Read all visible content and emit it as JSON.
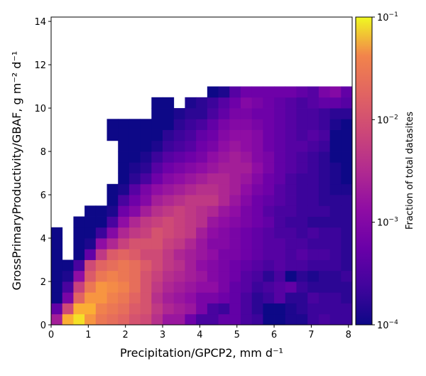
{
  "chart_data": {
    "type": "heatmap",
    "title": "",
    "xlabel": "Precipitation/GPCP2,  mm d⁻¹",
    "ylabel": "GrossPrimaryProductivity/GBAF,  g m⁻² d⁻¹",
    "xlim": [
      0,
      8.1
    ],
    "ylim": [
      0,
      14.2
    ],
    "x_ticks": [
      0,
      1,
      2,
      3,
      4,
      5,
      6,
      7,
      8
    ],
    "y_ticks": [
      0,
      2,
      4,
      6,
      8,
      10,
      12,
      14
    ],
    "bin_width_x": 0.3,
    "bin_width_y": 0.5,
    "colormap": "plasma",
    "colorbar": {
      "label": "Fraction of total datasites",
      "scale": "log",
      "min": 0.0001,
      "max": 0.1,
      "ticks": [
        {
          "value": 0.0001,
          "base": "10",
          "exp": "−4"
        },
        {
          "value": 0.001,
          "base": "10",
          "exp": "−3"
        },
        {
          "value": 0.01,
          "base": "10",
          "exp": "−2"
        },
        {
          "value": 0.1,
          "base": "10",
          "exp": "−1"
        }
      ]
    },
    "log10_fraction_grid_rows_from_y0": [
      [
        -2.8,
        -1.3,
        -1.1,
        -1.5,
        -1.8,
        -1.9,
        -2.0,
        -2.2,
        -2.3,
        -2.6,
        -2.9,
        -2.9,
        -3.3,
        -3.6,
        -3.6,
        -3.4,
        -3.4,
        -3.6,
        -3.7,
        -4.0,
        -4.0,
        -3.9,
        -3.9,
        -3.7,
        -3.6,
        -3.7,
        -3.7
      ],
      [
        -3.4,
        -2.3,
        -1.3,
        -1.3,
        -1.7,
        -1.8,
        -1.9,
        -2.1,
        -2.2,
        -2.5,
        -2.7,
        -2.8,
        -2.9,
        -3.2,
        -3.6,
        -3.7,
        -3.4,
        -3.6,
        -3.8,
        -4.0,
        -4.0,
        -3.9,
        -3.8,
        -3.7,
        -3.7,
        -3.7,
        -3.7
      ],
      [
        -4.0,
        -3.2,
        -2.0,
        -1.5,
        -1.5,
        -1.7,
        -1.8,
        -2.0,
        -2.2,
        -2.6,
        -2.8,
        -2.9,
        -3.0,
        -3.2,
        -3.2,
        -3.3,
        -3.4,
        -3.6,
        -3.8,
        -3.7,
        -3.5,
        -3.8,
        -3.8,
        -3.6,
        -3.7,
        -3.7,
        -3.8
      ],
      [
        -4.0,
        -3.6,
        -2.4,
        -1.8,
        -1.5,
        -1.6,
        -1.7,
        -1.9,
        -2.2,
        -2.5,
        -2.7,
        -2.8,
        -2.9,
        -3.0,
        -3.0,
        -3.2,
        -3.4,
        -3.5,
        -3.7,
        -3.6,
        -3.5,
        -3.4,
        -3.7,
        -3.8,
        -3.8,
        -3.8,
        -3.8
      ],
      [
        -4.0,
        -3.9,
        -3.0,
        -2.1,
        -1.8,
        -1.7,
        -1.8,
        -1.9,
        -2.2,
        -2.4,
        -2.6,
        -2.7,
        -2.8,
        -2.9,
        -3.1,
        -3.2,
        -3.3,
        -3.5,
        -3.6,
        -3.8,
        -3.6,
        -4.0,
        -3.8,
        -3.9,
        -3.8,
        -3.8,
        -3.7
      ],
      [
        -4.0,
        -4.0,
        -3.6,
        -2.3,
        -2.0,
        -1.9,
        -1.8,
        -1.9,
        -2.1,
        -2.3,
        -2.5,
        -2.6,
        -2.8,
        -3.0,
        -3.1,
        -3.2,
        -3.3,
        -3.4,
        -3.5,
        -3.6,
        -3.5,
        -3.6,
        -3.6,
        -3.7,
        -3.7,
        -3.7,
        -3.8
      ],
      [
        -4.0,
        null,
        -4.0,
        -3.4,
        -2.5,
        -2.1,
        -2.0,
        -2.1,
        -2.3,
        -2.3,
        -2.5,
        -2.7,
        -2.8,
        -2.9,
        -3.0,
        -3.2,
        -3.2,
        -3.3,
        -3.4,
        -3.5,
        -3.5,
        -3.6,
        -3.5,
        -3.6,
        -3.6,
        -3.7,
        -3.8
      ],
      [
        -4.0,
        null,
        -4.0,
        -3.9,
        -3.0,
        -2.7,
        -2.4,
        -2.2,
        -2.2,
        -2.2,
        -2.4,
        -2.5,
        -2.7,
        -2.9,
        -3.1,
        -3.1,
        -3.2,
        -3.3,
        -3.4,
        -3.5,
        -3.5,
        -3.6,
        -3.6,
        -3.7,
        -3.7,
        -3.7,
        -3.8
      ],
      [
        -4.0,
        null,
        -4.0,
        -4.0,
        -3.7,
        -3.1,
        -2.7,
        -2.5,
        -2.4,
        -2.2,
        -2.3,
        -2.4,
        -2.5,
        -2.8,
        -3.0,
        -3.1,
        -3.2,
        -3.3,
        -3.4,
        -3.5,
        -3.6,
        -3.6,
        -3.7,
        -3.6,
        -3.7,
        -3.7,
        -3.8
      ],
      [
        null,
        null,
        -4.0,
        -4.0,
        -4.0,
        -3.6,
        -3.0,
        -2.7,
        -2.5,
        -2.4,
        -2.3,
        -2.4,
        -2.5,
        -2.6,
        -2.9,
        -3.0,
        -3.1,
        -3.2,
        -3.3,
        -3.4,
        -3.6,
        -3.7,
        -3.7,
        -3.8,
        -3.8,
        -3.8,
        -3.8
      ],
      [
        null,
        null,
        null,
        -4.0,
        -4.0,
        -3.9,
        -3.3,
        -3.1,
        -2.8,
        -2.6,
        -2.5,
        -2.4,
        -2.5,
        -2.6,
        -2.7,
        -2.9,
        -3.0,
        -3.2,
        -3.3,
        -3.5,
        -3.6,
        -3.6,
        -3.7,
        -3.7,
        -3.7,
        -3.8,
        -3.8
      ],
      [
        null,
        null,
        null,
        null,
        null,
        -4.0,
        -3.6,
        -3.3,
        -3.1,
        -2.8,
        -2.7,
        -2.6,
        -2.5,
        -2.5,
        -2.5,
        -2.7,
        -2.9,
        -3.1,
        -3.3,
        -3.4,
        -3.5,
        -3.6,
        -3.7,
        -3.7,
        -3.8,
        -3.8,
        -3.8
      ],
      [
        null,
        null,
        null,
        null,
        null,
        -4.0,
        -3.9,
        -3.5,
        -3.2,
        -3.0,
        -2.9,
        -2.8,
        -2.7,
        -2.6,
        -2.6,
        -2.7,
        -2.8,
        -3.0,
        -3.2,
        -3.3,
        -3.5,
        -3.6,
        -3.7,
        -3.7,
        -3.8,
        -3.9,
        -3.9
      ],
      [
        null,
        null,
        null,
        null,
        null,
        null,
        -4.0,
        -3.8,
        -3.6,
        -3.3,
        -3.1,
        -3.0,
        -2.9,
        -2.8,
        -2.7,
        -2.7,
        -2.8,
        -2.9,
        -3.1,
        -3.3,
        -3.4,
        -3.6,
        -3.7,
        -3.7,
        -3.8,
        -3.9,
        -4.0
      ],
      [
        null,
        null,
        null,
        null,
        null,
        null,
        -4.0,
        -3.9,
        -3.8,
        -3.5,
        -3.3,
        -3.2,
        -3.1,
        -3.0,
        -2.9,
        -2.8,
        -2.8,
        -2.8,
        -3.0,
        -3.2,
        -3.4,
        -3.5,
        -3.6,
        -3.7,
        -3.8,
        -3.9,
        -4.0
      ],
      [
        null,
        null,
        null,
        null,
        null,
        null,
        -4.0,
        -4.0,
        -3.9,
        -3.7,
        -3.5,
        -3.4,
        -3.3,
        -3.2,
        -3.0,
        -2.9,
        -2.8,
        -2.9,
        -3.1,
        -3.2,
        -3.4,
        -3.5,
        -3.6,
        -3.7,
        -3.8,
        -4.0,
        -4.0
      ],
      [
        null,
        null,
        null,
        null,
        null,
        null,
        -4.0,
        -4.0,
        -4.0,
        -3.9,
        -3.7,
        -3.6,
        -3.5,
        -3.3,
        -3.2,
        -3.0,
        -2.9,
        -3.0,
        -3.1,
        -3.3,
        -3.4,
        -3.5,
        -3.5,
        -3.6,
        -3.7,
        -4.0,
        -4.0
      ],
      [
        null,
        null,
        null,
        null,
        null,
        -4.0,
        -4.0,
        -4.0,
        -4.0,
        -4.0,
        -3.8,
        -3.7,
        -3.6,
        -3.4,
        -3.3,
        -3.1,
        -3.0,
        -3.0,
        -3.1,
        -3.3,
        -3.4,
        -3.5,
        -3.6,
        -3.5,
        -3.6,
        -4.0,
        -4.0
      ],
      [
        null,
        null,
        null,
        null,
        null,
        -4.0,
        -4.0,
        -4.0,
        -4.0,
        -4.0,
        -4.0,
        -3.8,
        -3.7,
        -3.6,
        -3.4,
        -3.2,
        -3.1,
        -3.1,
        -3.2,
        -3.3,
        -3.4,
        -3.5,
        -3.6,
        -3.6,
        -3.7,
        -3.9,
        -4.0
      ],
      [
        null,
        null,
        null,
        null,
        null,
        null,
        null,
        null,
        null,
        -4.0,
        -4.0,
        -3.9,
        -3.8,
        -3.8,
        -3.6,
        -3.4,
        -3.2,
        -3.2,
        -3.3,
        -3.3,
        -3.4,
        -3.5,
        -3.6,
        -3.6,
        -3.7,
        -3.8,
        -3.8
      ],
      [
        null,
        null,
        null,
        null,
        null,
        null,
        null,
        null,
        null,
        -4.0,
        -4.0,
        null,
        -3.9,
        -3.8,
        -3.7,
        -3.5,
        -3.3,
        -3.1,
        -3.2,
        -3.3,
        -3.4,
        -3.5,
        -3.6,
        -3.5,
        -3.4,
        -3.4,
        -3.5
      ],
      [
        null,
        null,
        null,
        null,
        null,
        null,
        null,
        null,
        null,
        null,
        null,
        null,
        null,
        null,
        -4.0,
        -3.9,
        -3.5,
        -3.3,
        -3.3,
        -3.3,
        -3.3,
        -3.3,
        -3.4,
        -3.5,
        -3.2,
        -3.1,
        -3.4
      ],
      [
        null,
        null,
        null,
        null,
        null,
        null,
        null,
        null,
        null,
        null,
        null,
        null,
        null,
        null,
        null,
        null,
        null,
        null,
        null,
        null,
        null,
        null,
        null,
        null,
        null,
        null,
        null
      ]
    ]
  }
}
